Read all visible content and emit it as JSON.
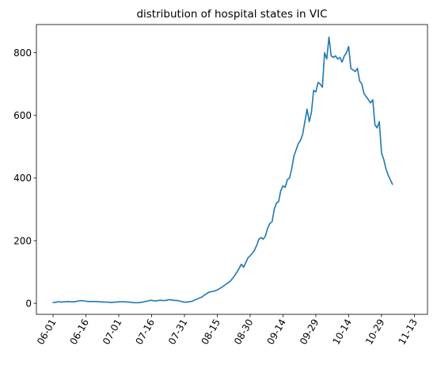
{
  "chart_data": {
    "type": "line",
    "title": "distribution of hospital states in VIC",
    "xlabel": "",
    "ylabel": "",
    "x_start": "06-01",
    "x_ticks": [
      "06-01",
      "06-16",
      "07-01",
      "07-16",
      "07-31",
      "08-15",
      "08-30",
      "09-14",
      "09-29",
      "10-14",
      "10-29",
      "11-13"
    ],
    "y_ticks": [
      0,
      200,
      400,
      600,
      800
    ],
    "ylim": [
      -35,
      890
    ],
    "xlim_days": [
      -7.6,
      171
    ],
    "line_color": "#1f77b4",
    "grid": false,
    "series": [
      {
        "values": [
          3,
          3,
          5,
          5,
          4,
          5,
          5,
          6,
          5,
          5,
          5,
          7,
          8,
          9,
          8,
          7,
          6,
          6,
          6,
          6,
          6,
          5,
          5,
          4,
          4,
          4,
          3,
          3,
          4,
          4,
          5,
          5,
          5,
          5,
          4,
          4,
          3,
          2,
          2,
          2,
          3,
          4,
          6,
          7,
          9,
          10,
          8,
          8,
          9,
          10,
          9,
          9,
          10,
          12,
          11,
          10,
          9,
          9,
          7,
          5,
          4,
          4,
          5,
          6,
          8,
          12,
          14,
          18,
          20,
          26,
          30,
          35,
          37,
          38,
          40,
          43,
          47,
          51,
          56,
          61,
          66,
          71,
          80,
          89,
          100,
          112,
          125,
          115,
          130,
          145,
          152,
          160,
          170,
          185,
          205,
          210,
          205,
          215,
          240,
          255,
          260,
          300,
          320,
          325,
          360,
          375,
          370,
          395,
          400,
          430,
          470,
          490,
          510,
          520,
          540,
          580,
          620,
          580,
          610,
          680,
          675,
          705,
          700,
          690,
          800,
          780,
          850,
          790,
          785,
          790,
          780,
          785,
          770,
          790,
          800,
          820,
          750,
          745,
          740,
          750,
          710,
          700,
          670,
          660,
          650,
          640,
          650,
          570,
          560,
          580,
          480,
          460,
          430,
          410,
          395,
          380
        ]
      }
    ]
  }
}
